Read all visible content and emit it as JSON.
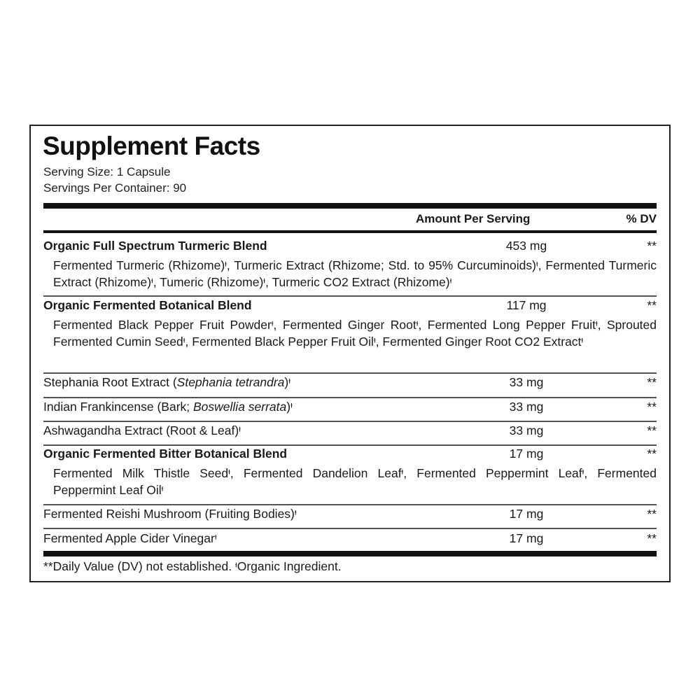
{
  "title": "Supplement Facts",
  "serving_size": "Serving Size: 1 Capsule",
  "servings_per_container": "Servings Per Container: 90",
  "header": {
    "amount": "Amount Per Serving",
    "dv": "% DV"
  },
  "rows": [
    {
      "name": "Organic Full Spectrum Turmeric Blend",
      "bold": true,
      "amount": "453 mg",
      "dv": "**",
      "sub": "Fermented Turmeric (Rhizome)ᶧ, Turmeric Extract (Rhizome; Std. to 95% Curcuminoids)ᶧ, Fermented Turmeric Extract (Rhizome)ᶧ, Tumeric (Rhizome)ᶧ, Turmeric CO2 Extract (Rhizome)ᶧ"
    },
    {
      "name": "Organic Fermented Botanical Blend",
      "bold": true,
      "amount": "117 mg",
      "dv": "**",
      "sub": "Fermented Black Pepper Fruit Powderᶧ, Fermented Ginger Rootᶧ, Fermented Long Pepper Fruitᶧ, Sprouted Fermented Cumin Seedᶧ, Fermented Black Pepper Fruit Oilᶧ, Fermented Ginger Root CO2 Extractᶧ"
    },
    {
      "name": "Stephania Root Extract (Stephania tetrandra)ᶧ",
      "bold": false,
      "amount": "33 mg",
      "dv": "**"
    },
    {
      "name": "Indian Frankincense (Bark; Boswellia serrata)ᶧ",
      "bold": false,
      "amount": "33 mg",
      "dv": "**"
    },
    {
      "name": "Ashwagandha Extract (Root & Leaf)ᶧ",
      "bold": false,
      "amount": "33 mg",
      "dv": "**"
    },
    {
      "name": "Organic Fermented Bitter Botanical Blend",
      "bold": true,
      "amount": "17 mg",
      "dv": "**",
      "sub": "Fermented Milk Thistle Seedᶧ, Fermented Dandelion Leafᶧ, Fermented Peppermint Leafᶧ, Fermented Peppermint Leaf Oilᶧ"
    },
    {
      "name": "Fermented Reishi Mushroom (Fruiting Bodies)ᶧ",
      "bold": false,
      "amount": "17 mg",
      "dv": "**"
    },
    {
      "name": "Fermented Apple Cider Vinegarᶧ",
      "bold": false,
      "amount": "17 mg",
      "dv": "**"
    }
  ],
  "footnote": "**Daily Value (DV) not established.   ᶧOrganic Ingredient."
}
